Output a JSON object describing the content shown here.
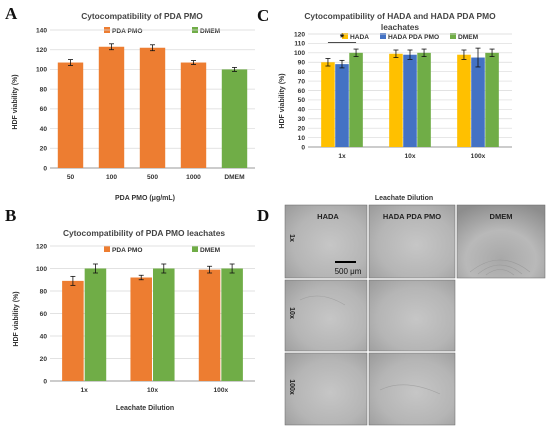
{
  "colors": {
    "orange": "#ED7D31",
    "green": "#70AD47",
    "yellow": "#FFC000",
    "blue": "#4472C4",
    "grid": "#d9d9d9",
    "axis": "#9a9a9a"
  },
  "panel_letters": {
    "a": "A",
    "b": "B",
    "c": "C",
    "d": "D"
  },
  "chart_data": [
    {
      "id": "A",
      "type": "bar",
      "title": "Cytocompatibility of PDA PMO",
      "xlabel": "PDA PMO (μg/mL)",
      "ylabel": "HDF viability (%)",
      "ylim": [
        0,
        140
      ],
      "yticks": [
        0,
        20,
        40,
        60,
        80,
        100,
        120,
        140
      ],
      "grid": true,
      "legend": "top",
      "legend_entries": [
        {
          "name": "PDA PMO",
          "color": "#ED7D31"
        },
        {
          "name": "DMEM",
          "color": "#70AD47"
        }
      ],
      "categories": [
        "50",
        "100",
        "500",
        "1000",
        "DMEM"
      ],
      "values": [
        107,
        123,
        122,
        107,
        100
      ],
      "errors": [
        3,
        3,
        3,
        2,
        2
      ],
      "bar_colors": [
        "#ED7D31",
        "#ED7D31",
        "#ED7D31",
        "#ED7D31",
        "#70AD47"
      ]
    },
    {
      "id": "B",
      "type": "bar",
      "title": "Cytocompatibility of PDA PMO leachates",
      "xlabel": "Leachate Dilution",
      "ylabel": "HDF viability (%)",
      "ylim": [
        0,
        120
      ],
      "yticks": [
        0,
        20,
        40,
        60,
        80,
        100,
        120
      ],
      "grid": true,
      "legend": "top",
      "categories": [
        "1x",
        "10x",
        "100x"
      ],
      "series": [
        {
          "name": "PDA PMO",
          "color": "#ED7D31",
          "values": [
            89,
            92,
            99
          ],
          "errors": [
            4,
            2,
            3
          ]
        },
        {
          "name": "DMEM",
          "color": "#70AD47",
          "values": [
            100,
            100,
            100
          ],
          "errors": [
            4,
            4,
            4
          ]
        }
      ]
    },
    {
      "id": "C",
      "type": "bar",
      "title_lines": [
        "Cytocompatibility of HADA and HADA PDA PMO",
        "leachates"
      ],
      "xlabel": "Leachate Dilution",
      "ylabel": "HDF viability (%)",
      "ylim": [
        0,
        120
      ],
      "yticks": [
        0,
        10,
        20,
        30,
        40,
        50,
        60,
        70,
        80,
        90,
        100,
        110,
        120
      ],
      "grid": true,
      "legend": "top",
      "categories": [
        "1x",
        "10x",
        "100x"
      ],
      "series": [
        {
          "name": "HADA",
          "color": "#FFC000",
          "values": [
            90,
            99,
            98
          ],
          "errors": [
            4,
            4,
            5
          ]
        },
        {
          "name": "HADA PDA PMO",
          "color": "#4472C4",
          "values": [
            88,
            98,
            95
          ],
          "errors": [
            4,
            5,
            10
          ]
        },
        {
          "name": "DMEM",
          "color": "#70AD47",
          "values": [
            100,
            100,
            100
          ],
          "errors": [
            4,
            4,
            4
          ]
        }
      ],
      "annotation": "*"
    }
  ],
  "micrographs": {
    "columns": [
      "HADA",
      "HADA PDA PMO",
      "DMEM"
    ],
    "rows": [
      "1x",
      "10x",
      "100x"
    ],
    "scale_bar": "500 μm"
  }
}
